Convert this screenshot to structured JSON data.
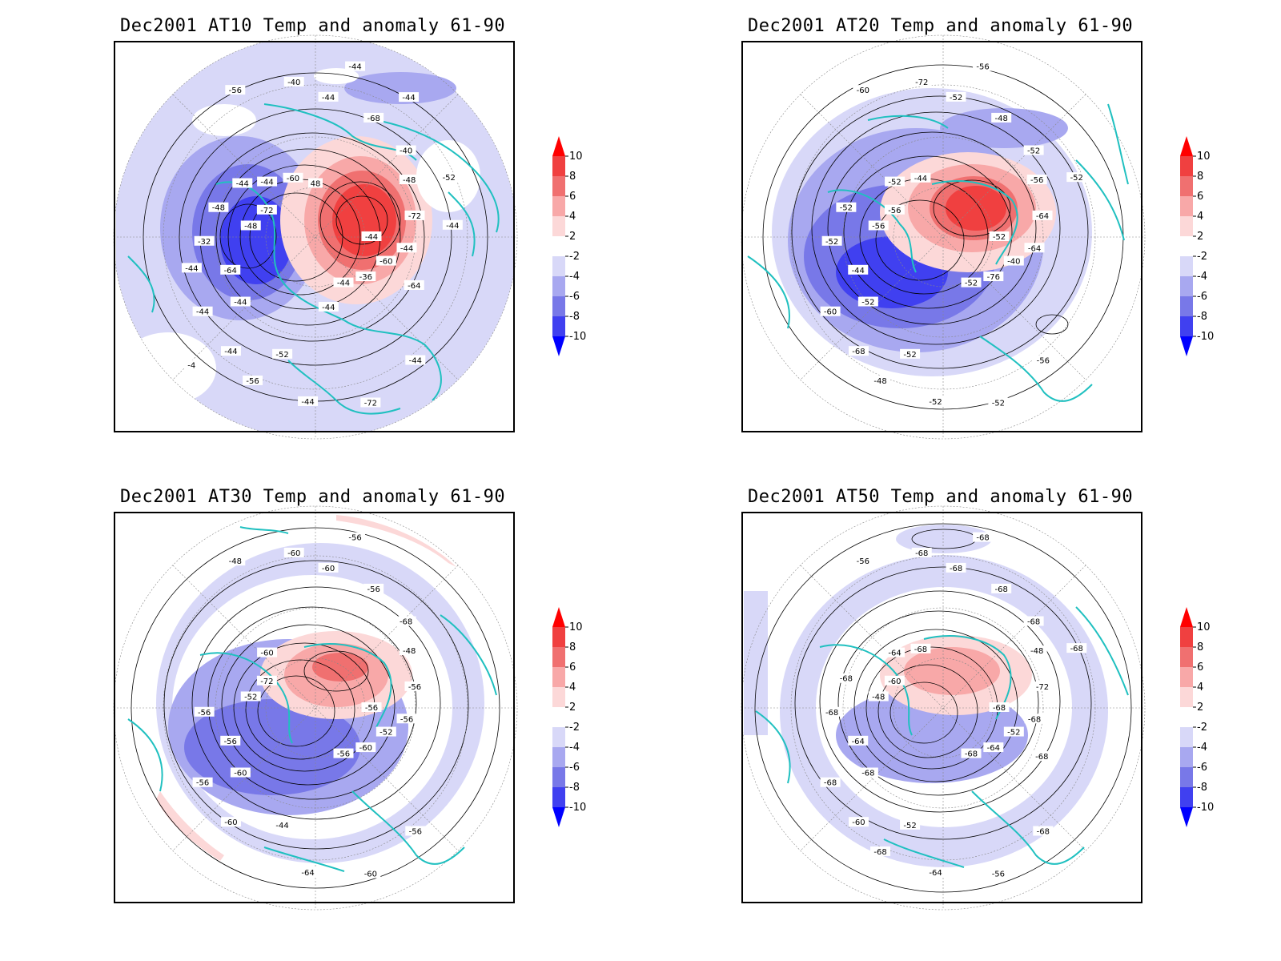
{
  "colors": {
    "frame": "#000000",
    "coast": "#20c0c0",
    "contour": "#000000",
    "grid": "#888888",
    "scale": [
      "#0000ff",
      "#4040f0",
      "#7878e8",
      "#a8a8f0",
      "#d8d8f8",
      "#ffffff",
      "#fcd8d8",
      "#f8a8a8",
      "#f07070",
      "#f04040",
      "#ff0000"
    ]
  },
  "colorbar": {
    "tick_labels": [
      "10",
      "8",
      "6",
      "4",
      "2",
      "-2",
      "-4",
      "-6",
      "-8",
      "-10"
    ]
  },
  "panels": [
    {
      "title": "Dec2001 AT10 Temp and anomaly 61-90",
      "contour_labels": [
        "-44",
        "-44",
        "-44",
        "-44",
        "-48",
        "-48",
        "-52",
        "-56",
        "-60",
        "-64",
        "-68",
        "-72",
        "-72",
        "-72",
        "-44",
        "-40",
        "-36",
        "-32",
        "-40",
        "-44",
        "-44",
        "-44",
        "-44",
        "-44",
        "-44",
        "-48",
        "-52",
        "-56",
        "-60",
        "-64",
        "-44",
        "-44",
        "-44",
        "-44",
        "-44",
        "-4",
        "48"
      ]
    },
    {
      "title": "Dec2001 AT20 Temp and anomaly 61-90",
      "contour_labels": [
        "-52",
        "-52",
        "-52",
        "-56",
        "-56",
        "-56",
        "-52",
        "-60",
        "-40",
        "-44",
        "-48",
        "-52",
        "-56",
        "-64",
        "-68",
        "-72",
        "-76",
        "-52",
        "-52",
        "-52",
        "-52",
        "-64",
        "-60",
        "-56",
        "-52",
        "-52",
        "-52",
        "-48",
        "-44"
      ]
    },
    {
      "title": "Dec2001 AT30 Temp and anomaly 61-90",
      "contour_labels": [
        "-56",
        "-60",
        "-60",
        "-56",
        "-52",
        "-48",
        "-44",
        "-48",
        "-52",
        "-56",
        "-56",
        "-60",
        "-72",
        "-56",
        "-60",
        "-60",
        "-60",
        "-56",
        "-68",
        "-64",
        "-60",
        "-56",
        "-56",
        "-56",
        "-56"
      ]
    },
    {
      "title": "Dec2001 AT50 Temp and anomaly 61-90",
      "contour_labels": [
        "-68",
        "-68",
        "-68",
        "-68",
        "-48",
        "-48",
        "-52",
        "-56",
        "-52",
        "-64",
        "-68",
        "-56",
        "-60",
        "-72",
        "-60",
        "-68",
        "-64",
        "-68",
        "-68",
        "-64",
        "-64",
        "-68",
        "-68",
        "-68",
        "-68",
        "-68",
        "-68",
        "-68",
        "-68",
        "-68"
      ]
    }
  ]
}
